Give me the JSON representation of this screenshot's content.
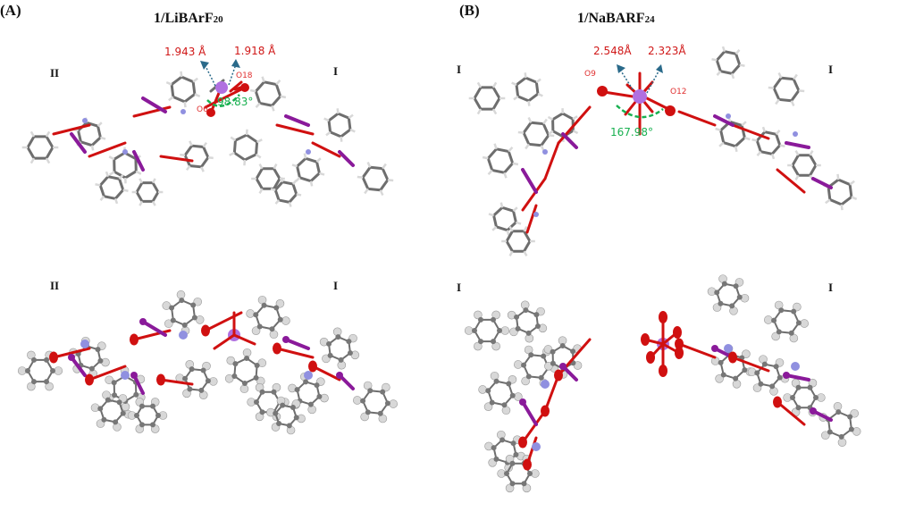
{
  "panels": [
    {
      "label": "(A)",
      "title": "1/LiBArF",
      "title_sub": "20",
      "fragments_top": [
        "II",
        "I"
      ],
      "fragments_bottom": [
        "II",
        "I"
      ],
      "distances": [
        "1.943 Å",
        "1.918 Å"
      ],
      "atoms": [
        "O18",
        "O6"
      ],
      "angle": "98.83°"
    },
    {
      "label": "(B)",
      "title": "1/NaBARF",
      "title_sub": "24",
      "fragments_top": [
        "I",
        "I"
      ],
      "fragments_bottom": [
        "I",
        "I"
      ],
      "distances": [
        "2.548Å",
        "2.323Å"
      ],
      "atoms": [
        "O9",
        "O12"
      ],
      "angle": "167.98°"
    }
  ],
  "colors": {
    "carbon": "#6e6e6e",
    "hydrogen": "#d8d8d8",
    "oxygen": "#d01010",
    "iodine": "#8a1a9a",
    "nitrogen": "#9090e0",
    "metal": "#b070e0",
    "distance_arrow": "#2a6a8a",
    "angle_arc": "#18b050"
  }
}
